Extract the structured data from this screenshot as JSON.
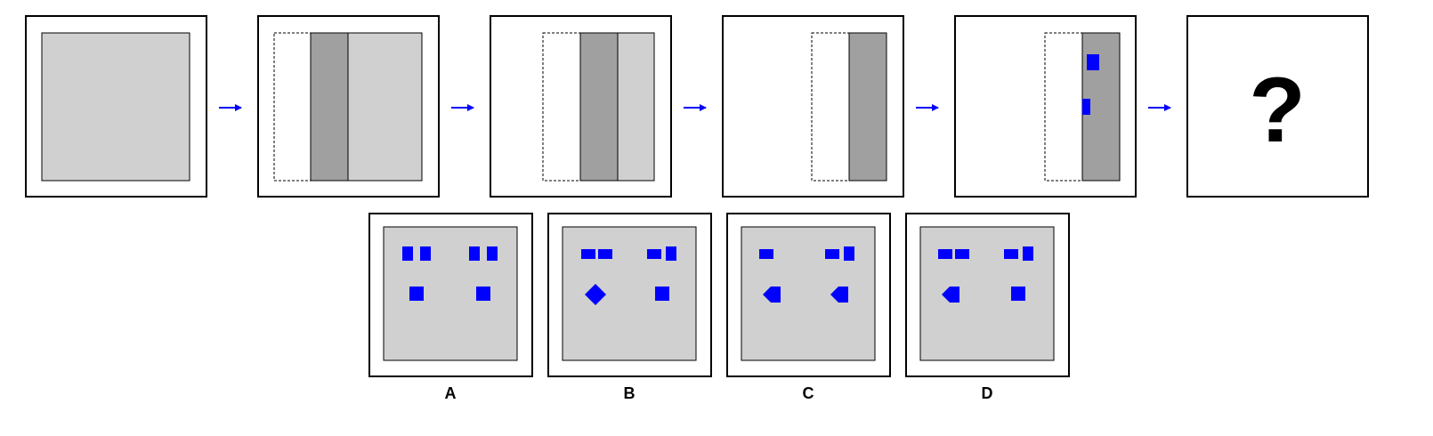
{
  "colors": {
    "paper": "#ffffff",
    "frame": "#000000",
    "light_gray": "#d0d0d0",
    "dark_gray": "#a0a0a0",
    "blue": "#0000ff"
  },
  "sequence": {
    "question_mark": "?",
    "arrow_count": 5
  },
  "options": [
    {
      "label": "A"
    },
    {
      "label": "B"
    },
    {
      "label": "C"
    },
    {
      "label": "D"
    }
  ]
}
